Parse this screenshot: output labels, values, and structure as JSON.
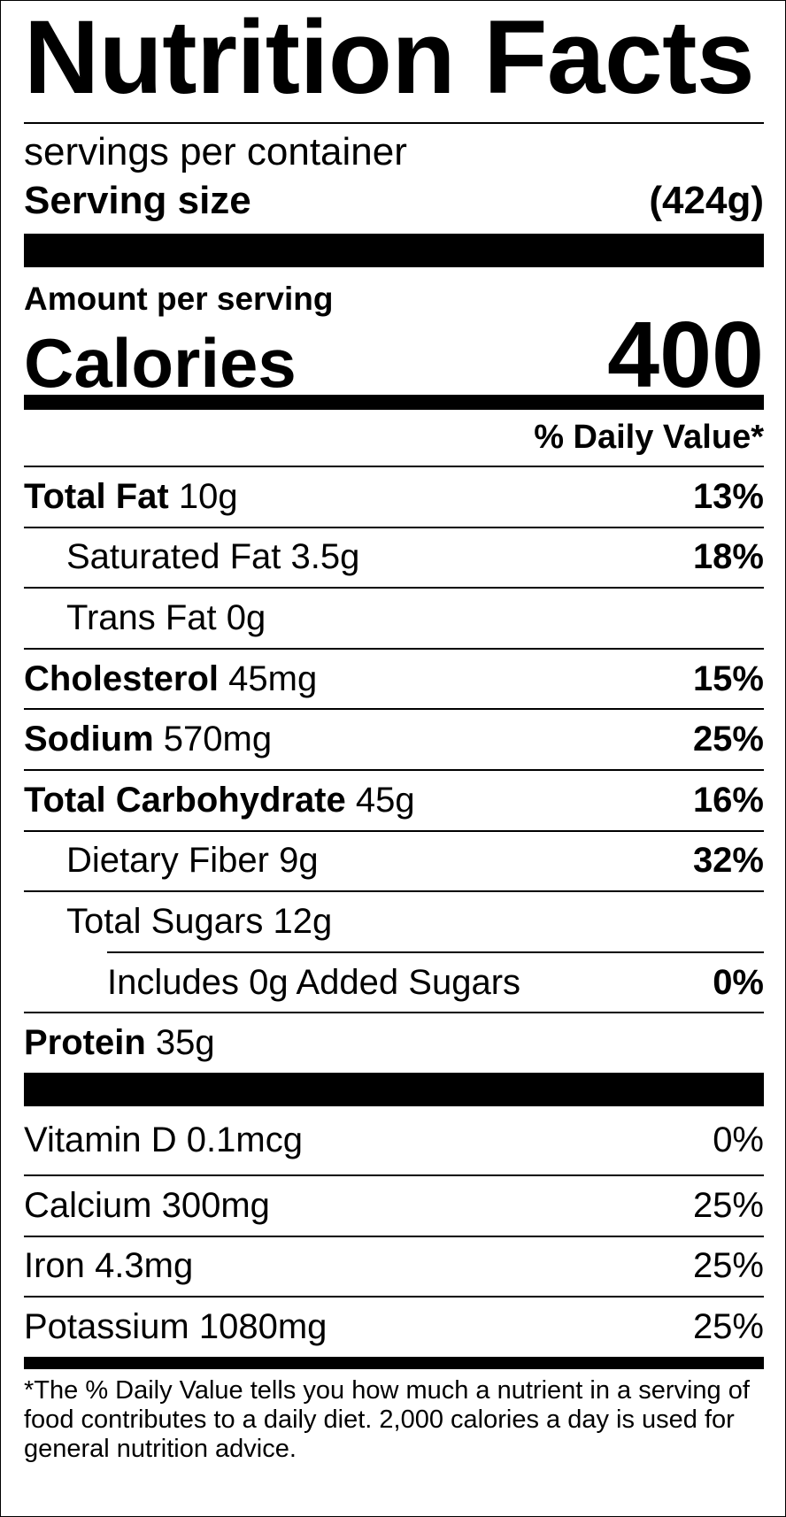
{
  "title": "Nutrition Facts",
  "servings": "servings per container",
  "serving_size": {
    "label": "Serving size",
    "value": "(424g)"
  },
  "amount_per_serving": "Amount per serving",
  "calories": {
    "label": "Calories",
    "value": "400"
  },
  "daily_value_header": "% Daily Value*",
  "nutrients": [
    {
      "name": "Total Fat",
      "amount": "10g",
      "dv": "13%",
      "sub": [
        {
          "name": "Saturated Fat",
          "amount": "3.5g",
          "dv": "18%"
        },
        {
          "name": "Trans Fat",
          "amount": "0g"
        }
      ]
    },
    {
      "name": "Cholesterol",
      "amount": "45mg",
      "dv": "15%"
    },
    {
      "name": "Sodium",
      "amount": "570mg",
      "dv": "25%"
    },
    {
      "name": "Total Carbohydrate",
      "amount": "45g",
      "dv": "16%",
      "sub": [
        {
          "name": "Dietary Fiber",
          "amount": "9g",
          "dv": "32%"
        },
        {
          "name": "Total Sugars",
          "amount": "12g",
          "sub": [
            {
              "name": "Includes 0g Added Sugars",
              "dv": "0%"
            }
          ]
        }
      ]
    },
    {
      "name": "Protein",
      "amount": "35g"
    }
  ],
  "vitamins": [
    {
      "name": "Vitamin D",
      "amount": "0.1mcg",
      "dv": "0%"
    },
    {
      "name": "Calcium",
      "amount": "300mg",
      "dv": "25%"
    },
    {
      "name": "Iron",
      "amount": "4.3mg",
      "dv": "25%"
    },
    {
      "name": "Potassium",
      "amount": "1080mg",
      "dv": "25%"
    }
  ],
  "footnote": "*The % Daily Value tells you how much a nutrient in a serving of food contributes to a daily diet. 2,000 calories a day is used for general nutrition advice."
}
